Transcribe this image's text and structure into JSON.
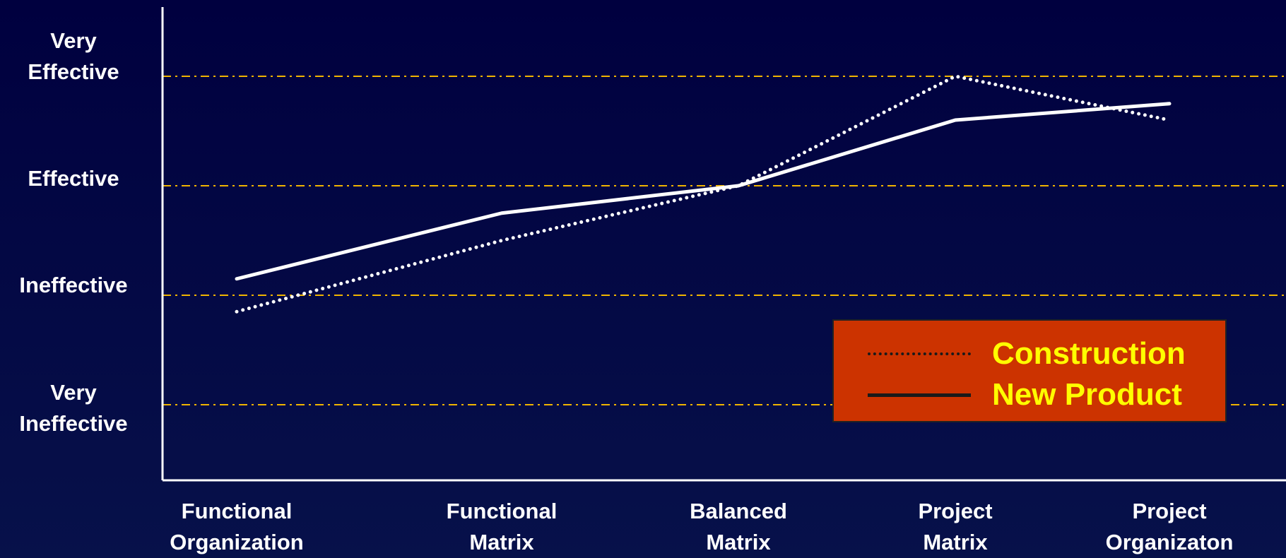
{
  "chart_data": {
    "type": "line",
    "title": "",
    "categories": [
      "Functional\nOrganization",
      "Functional\nMatrix",
      "Balanced\nMatrix",
      "Project\nMatrix",
      "Project\nOrganizaton"
    ],
    "y_levels": [
      "Very\nIneffective",
      "Ineffective",
      "Effective",
      "Very\nEffective"
    ],
    "ylim": [
      1,
      4
    ],
    "grid": true,
    "legend_position": "bottom-right",
    "series": [
      {
        "name": "Construction",
        "style": "dotted",
        "values": [
          1.85,
          2.5,
          3.0,
          4.0,
          3.6
        ]
      },
      {
        "name": "New Product",
        "style": "solid",
        "values": [
          2.15,
          2.75,
          3.0,
          3.6,
          3.75
        ]
      }
    ]
  },
  "colors": {
    "background": "#00003f",
    "gridline": "#f0b400",
    "axis": "#ffffff",
    "series_line": "#ffffff",
    "legend_bg": "#cc3300",
    "legend_text": "#ffff00",
    "text": "#ffffff"
  }
}
